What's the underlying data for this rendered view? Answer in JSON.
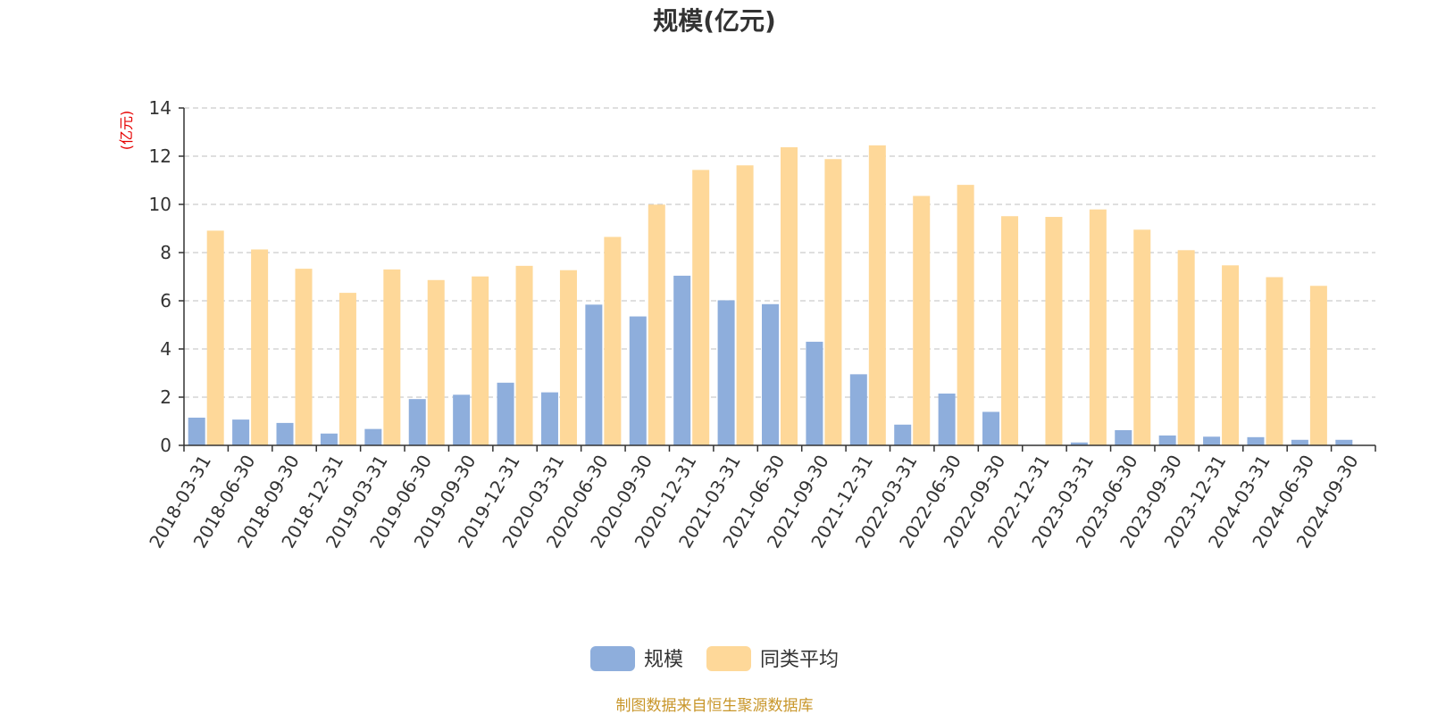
{
  "chart_data": {
    "type": "bar",
    "title": "规模(亿元)",
    "ylabel": "(亿元)",
    "xlabel": "",
    "ylim": [
      0,
      14
    ],
    "yticks": [
      0,
      2,
      4,
      6,
      8,
      10,
      12,
      14
    ],
    "grid": true,
    "legend_position": "bottom",
    "categories": [
      "2018-03-31",
      "2018-06-30",
      "2018-09-30",
      "2018-12-31",
      "2019-03-31",
      "2019-06-30",
      "2019-09-30",
      "2019-12-31",
      "2020-03-31",
      "2020-06-30",
      "2020-09-30",
      "2020-12-31",
      "2021-03-31",
      "2021-06-30",
      "2021-09-30",
      "2021-12-31",
      "2022-03-31",
      "2022-06-30",
      "2022-09-30",
      "2022-12-31",
      "2023-03-31",
      "2023-06-30",
      "2023-09-30",
      "2023-12-31",
      "2024-03-31",
      "2024-06-30",
      "2024-09-30"
    ],
    "series": [
      {
        "name": "规模",
        "color": "#8eaedc",
        "values": [
          1.15,
          1.07,
          0.93,
          0.49,
          0.68,
          1.92,
          2.1,
          2.6,
          2.2,
          5.84,
          5.35,
          7.04,
          6.02,
          5.86,
          4.3,
          2.95,
          0.86,
          2.15,
          1.39,
          0.02,
          0.12,
          0.63,
          0.41,
          0.36,
          0.34,
          0.23,
          0.23
        ]
      },
      {
        "name": "同类平均",
        "color": "#fed899",
        "values": [
          8.91,
          8.13,
          7.33,
          6.33,
          7.3,
          6.86,
          7.01,
          7.45,
          7.27,
          8.65,
          9.99,
          11.43,
          11.62,
          12.37,
          11.88,
          12.45,
          10.35,
          10.81,
          9.51,
          9.48,
          9.79,
          8.95,
          8.1,
          7.47,
          6.98,
          6.62,
          null
        ]
      }
    ]
  },
  "source": "制图数据来自恒生聚源数据库"
}
